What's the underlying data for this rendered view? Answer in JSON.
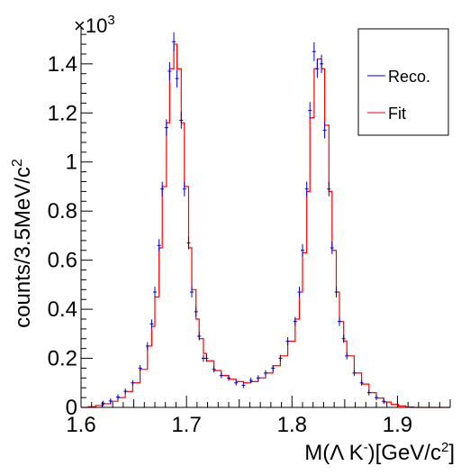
{
  "chart_data": {
    "type": "line",
    "multiplier_label": "×10",
    "multiplier_exp": "3",
    "ylabel_main": "counts/3.5MeV/c",
    "ylabel_sup": "2",
    "xlabel_pre": "M(",
    "xlabel_lambda": "Λ",
    "xlabel_k": " K",
    "xlabel_ksup": "-",
    "xlabel_post": ")[GeV/c",
    "xlabel_sup": "2",
    "xlabel_end": "]",
    "xlim": [
      1.6,
      1.95
    ],
    "ylim": [
      0,
      1.55
    ],
    "xticks": [
      1.6,
      1.7,
      1.8,
      1.9
    ],
    "xtick_labels": [
      "1.6",
      "1.7",
      "1.8",
      "1.9"
    ],
    "yticks": [
      0,
      0.2,
      0.4,
      0.6,
      0.8,
      1,
      1.2,
      1.4
    ],
    "ytick_labels": [
      "0",
      "0.2",
      "0.4",
      "0.6",
      "0.8",
      "1",
      "1.2",
      "1.4"
    ],
    "legend": {
      "position": "top-right",
      "entries": [
        "Reco.",
        "Fit"
      ]
    },
    "colors": {
      "reco": "#0000cc",
      "fit": "#ff0000",
      "axis": "#000000"
    },
    "series": [
      {
        "name": "Fit",
        "x": [
          1.6,
          1.607,
          1.614,
          1.621,
          1.628,
          1.635,
          1.642,
          1.649,
          1.656,
          1.663,
          1.667,
          1.67,
          1.674,
          1.677,
          1.681,
          1.684,
          1.688,
          1.691,
          1.695,
          1.698,
          1.702,
          1.705,
          1.709,
          1.712,
          1.716,
          1.719,
          1.726,
          1.733,
          1.74,
          1.747,
          1.754,
          1.761,
          1.768,
          1.775,
          1.782,
          1.789,
          1.796,
          1.803,
          1.807,
          1.81,
          1.814,
          1.817,
          1.821,
          1.824,
          1.828,
          1.831,
          1.835,
          1.838,
          1.842,
          1.845,
          1.849,
          1.852,
          1.859,
          1.866,
          1.873,
          1.88,
          1.887,
          1.894,
          1.901,
          1.908,
          1.915,
          1.922
        ],
        "values": [
          0.0,
          0.003,
          0.008,
          0.015,
          0.025,
          0.04,
          0.065,
          0.1,
          0.155,
          0.25,
          0.33,
          0.45,
          0.65,
          0.9,
          1.16,
          1.38,
          1.48,
          1.38,
          1.16,
          0.9,
          0.65,
          0.48,
          0.36,
          0.28,
          0.22,
          0.19,
          0.15,
          0.13,
          0.115,
          0.105,
          0.1,
          0.105,
          0.12,
          0.14,
          0.17,
          0.21,
          0.27,
          0.36,
          0.47,
          0.63,
          0.88,
          1.18,
          1.38,
          1.42,
          1.38,
          1.15,
          0.88,
          0.64,
          0.47,
          0.35,
          0.27,
          0.21,
          0.14,
          0.095,
          0.06,
          0.038,
          0.022,
          0.012,
          0.006,
          0.002,
          0.0,
          0.0
        ]
      },
      {
        "name": "Reco.",
        "x": [
          1.621,
          1.628,
          1.635,
          1.642,
          1.649,
          1.656,
          1.663,
          1.667,
          1.67,
          1.674,
          1.677,
          1.681,
          1.684,
          1.688,
          1.691,
          1.695,
          1.698,
          1.702,
          1.705,
          1.709,
          1.712,
          1.716,
          1.719,
          1.726,
          1.733,
          1.74,
          1.747,
          1.754,
          1.761,
          1.768,
          1.775,
          1.782,
          1.789,
          1.796,
          1.803,
          1.807,
          1.81,
          1.814,
          1.817,
          1.821,
          1.824,
          1.828,
          1.831,
          1.835,
          1.838,
          1.842,
          1.845,
          1.849,
          1.852,
          1.859,
          1.866,
          1.873,
          1.88,
          1.887
        ],
        "values": [
          0.016,
          0.026,
          0.042,
          0.066,
          0.1,
          0.16,
          0.25,
          0.34,
          0.47,
          0.66,
          0.89,
          1.14,
          1.37,
          1.49,
          1.34,
          1.17,
          0.89,
          0.67,
          0.47,
          0.39,
          0.29,
          0.2,
          0.2,
          0.155,
          0.13,
          0.12,
          0.1,
          0.09,
          0.11,
          0.12,
          0.14,
          0.16,
          0.2,
          0.27,
          0.35,
          0.47,
          0.64,
          0.89,
          1.21,
          1.45,
          1.38,
          1.4,
          1.13,
          0.89,
          0.65,
          0.47,
          0.35,
          0.28,
          0.21,
          0.14,
          0.1,
          0.06,
          0.04,
          0.025
        ]
      }
    ]
  }
}
